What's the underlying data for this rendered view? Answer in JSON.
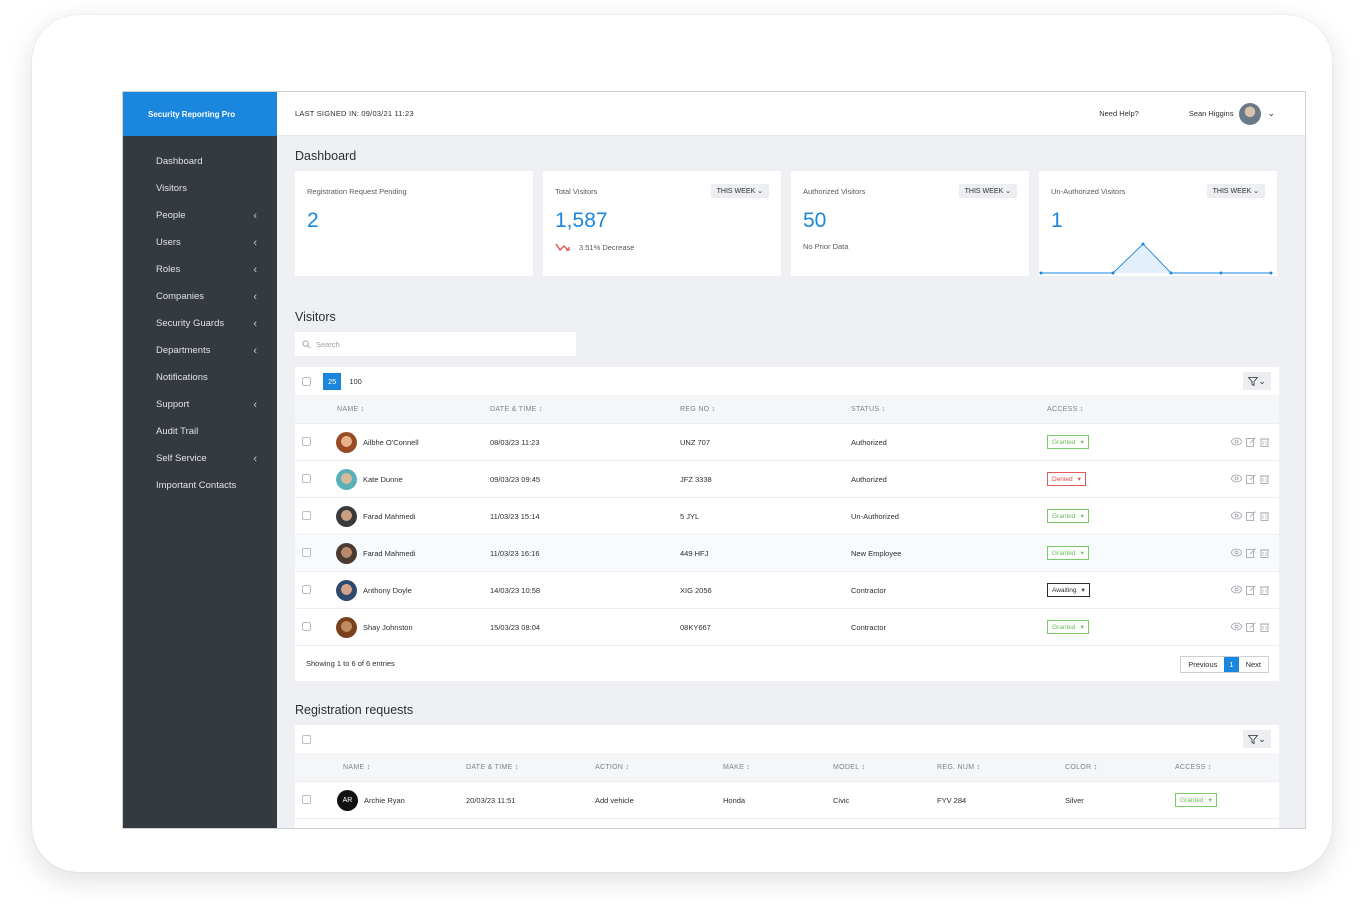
{
  "app": {
    "brand": "Security Reporting Pro"
  },
  "topbar": {
    "last_signed": "LAST SIGNED IN: 09/03/21 11:23",
    "help": "Need Help?",
    "user": "Sean Higgins"
  },
  "sidebar": {
    "items": [
      {
        "label": "Dashboard",
        "chev": ""
      },
      {
        "label": "Visitors",
        "chev": ""
      },
      {
        "label": "People",
        "chev": "‹"
      },
      {
        "label": "Users",
        "chev": "‹"
      },
      {
        "label": "Roles",
        "chev": "‹"
      },
      {
        "label": "Companies",
        "chev": "‹"
      },
      {
        "label": "Security Guards",
        "chev": "‹"
      },
      {
        "label": "Departments",
        "chev": "‹"
      },
      {
        "label": "Notifications",
        "chev": ""
      },
      {
        "label": "Support",
        "chev": "‹"
      },
      {
        "label": "Audit Trail",
        "chev": ""
      },
      {
        "label": "Self Service",
        "chev": "‹"
      },
      {
        "label": "Important Contacts",
        "chev": ""
      }
    ]
  },
  "dashboard": {
    "title": "Dashboard",
    "cards": [
      {
        "label": "Registration Request Pending",
        "value": "2"
      },
      {
        "label": "Total Visitors",
        "week": "THIS WEEK",
        "value": "1,587",
        "sub": "3.51% Decrease"
      },
      {
        "label": "Authorized Visitors",
        "week": "THIS WEEK",
        "value": "50",
        "sub": "No Prior Data"
      },
      {
        "label": "Un-Authorized Visitors",
        "week": "THIS WEEK",
        "value": "1"
      }
    ]
  },
  "visitors": {
    "title": "Visitors",
    "search_placeholder": "Search",
    "page_size_active": "25",
    "page_size_alt": "100",
    "columns": [
      "NAME ↕",
      "DATE & TIME ↕",
      "REG NO ↕",
      "STATUS ↕",
      "ACCESS ↕"
    ],
    "rows": [
      {
        "name": "Ailbhe O'Connell",
        "date": "08/03/23 11:23",
        "reg": "UNZ 707",
        "status": "Authorized",
        "access": "Granted"
      },
      {
        "name": "Kate Dunne",
        "date": "09/03/23 09:45",
        "reg": "JFZ 3338",
        "status": "Authorized",
        "access": "Denied"
      },
      {
        "name": "Farad Mahmedi",
        "date": "11/03/23 15:14",
        "reg": "5 JYL",
        "status": "Un-Authorized",
        "access": "Granted"
      },
      {
        "name": "Farad Mahmedi",
        "date": "11/03/23 16:16",
        "reg": "449 HFJ",
        "status": "New Employee",
        "access": "Granted"
      },
      {
        "name": "Anthony Doyle",
        "date": "14/03/23 10:58",
        "reg": "XIG 2056",
        "status": "Contractor",
        "access": "Awaiting"
      },
      {
        "name": "Shay Johnston",
        "date": "15/03/23 08:04",
        "reg": "08KY667",
        "status": "Contractor",
        "access": "Granted"
      }
    ],
    "showing": "Showing 1 to 6 of 6 entries",
    "pager": {
      "prev": "Previous",
      "current": "1",
      "next": "Next"
    }
  },
  "registration": {
    "title": "Registration requests",
    "columns": [
      "NAME ↕",
      "DATE & TIME ↕",
      "ACTION ↕",
      "MAKE ↕",
      "MODEL ↕",
      "REG. NUM ↕",
      "COLOR ↕",
      "ACCESS ↕"
    ],
    "rows": [
      {
        "initials": "AR",
        "name": "Archie Ryan",
        "date": "20/03/23 11:51",
        "action": "Add vehicle",
        "make": "Honda",
        "model": "Civic",
        "reg": "FYV 284",
        "color": "Silver",
        "access": "Granted"
      }
    ]
  },
  "colors": {
    "brand": "#1a86de",
    "sidebar": "#353a41",
    "granted": "#6bbd5a",
    "denied": "#dd4b4b"
  },
  "chart_data": {
    "type": "line",
    "title": "",
    "values": [
      0,
      0,
      1,
      0,
      0,
      0
    ]
  }
}
